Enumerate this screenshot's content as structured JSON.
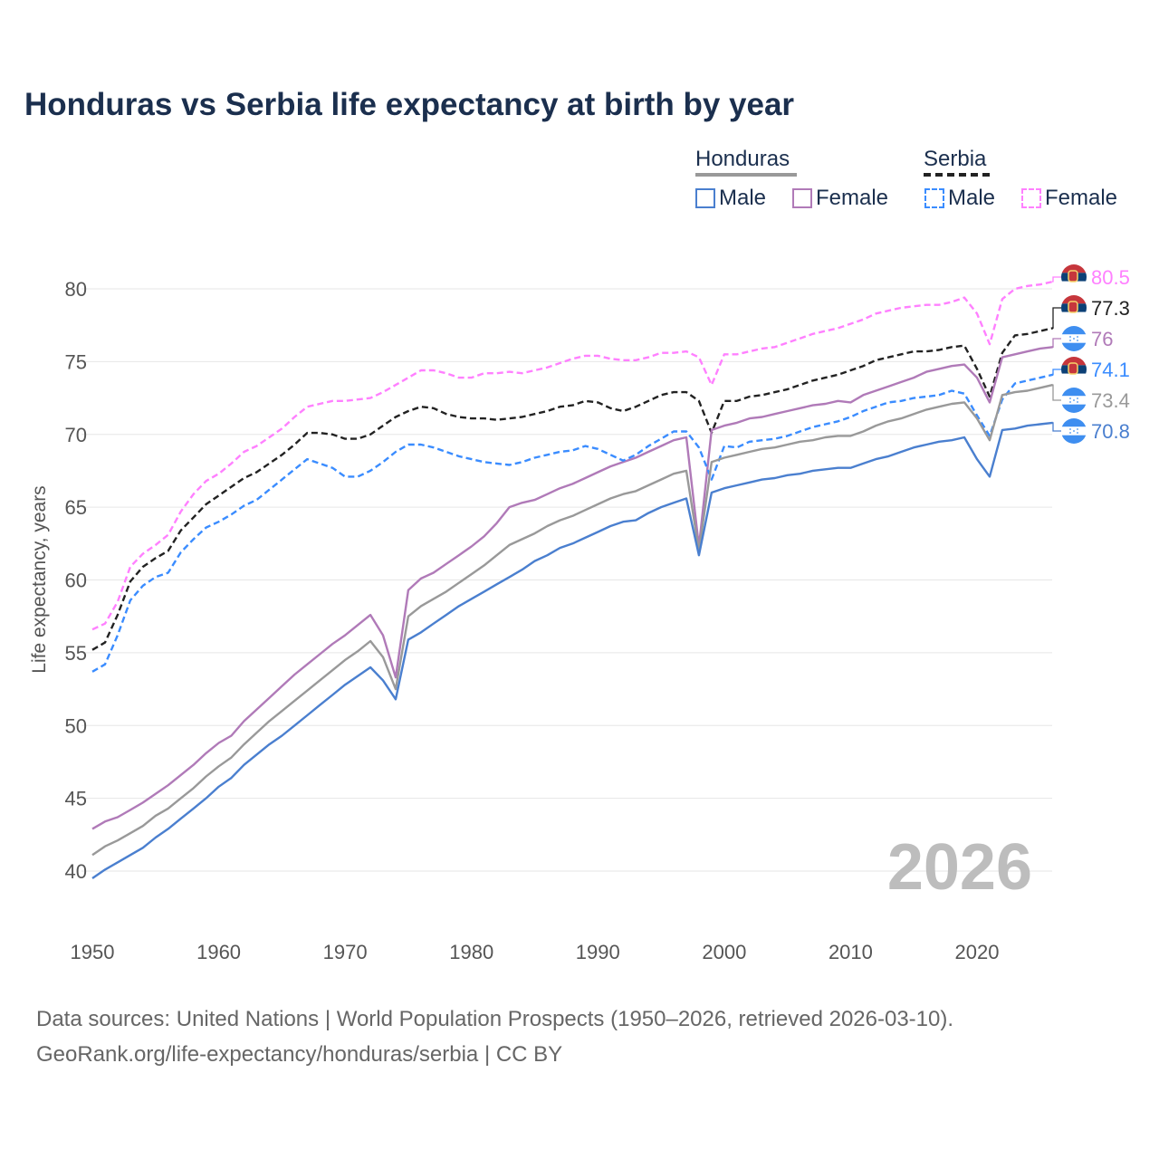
{
  "title": "Honduras vs Serbia life expectancy at birth by year",
  "legend": {
    "groups": [
      {
        "label": "Honduras",
        "color": "#999999",
        "dash": false
      },
      {
        "label": "Serbia",
        "color": "#222222",
        "dash": true
      }
    ],
    "items": [
      {
        "label": "Male",
        "color": "#4a7fcf",
        "dash": false
      },
      {
        "label": "Female",
        "color": "#b07ab8",
        "dash": false
      },
      {
        "label": "Male",
        "color": "#3a8cff",
        "dash": true
      },
      {
        "label": "Female",
        "color": "#ff80ff",
        "dash": true
      }
    ]
  },
  "year_watermark": "2026",
  "source_line1": "Data sources: United Nations | World Population Prospects (1950–2026, retrieved 2026-03-10).",
  "source_line2": "GeoRank.org/life-expectancy/honduras/serbia | CC BY",
  "chart_data": {
    "type": "line",
    "title": "Honduras vs Serbia life expectancy at birth by year",
    "xlabel": "",
    "ylabel": "Life expectancy, years",
    "xlim": [
      1950,
      2026
    ],
    "ylim": [
      37,
      82
    ],
    "xticks": [
      1950,
      1960,
      1970,
      1980,
      1990,
      2000,
      2010,
      2020
    ],
    "yticks": [
      40,
      45,
      50,
      55,
      60,
      65,
      70,
      75,
      80
    ],
    "grid": true,
    "legend_position": "top-right",
    "x_start": 1950,
    "series": [
      {
        "name": "Serbia Female",
        "country": "Serbia",
        "color": "#ff80ff",
        "dash": true,
        "end_label": "80.5",
        "flag": "serbia",
        "values": [
          56.6,
          57.0,
          58.5,
          60.9,
          61.8,
          62.4,
          63.1,
          64.7,
          65.9,
          66.8,
          67.3,
          68.0,
          68.8,
          69.2,
          69.8,
          70.4,
          71.2,
          71.9,
          72.1,
          72.3,
          72.3,
          72.4,
          72.5,
          72.9,
          73.4,
          73.9,
          74.4,
          74.4,
          74.2,
          73.9,
          73.9,
          74.2,
          74.2,
          74.3,
          74.2,
          74.4,
          74.6,
          74.9,
          75.2,
          75.4,
          75.4,
          75.2,
          75.1,
          75.1,
          75.3,
          75.6,
          75.6,
          75.7,
          75.3,
          73.4,
          75.5,
          75.5,
          75.7,
          75.9,
          76.0,
          76.3,
          76.6,
          76.9,
          77.1,
          77.3,
          77.6,
          77.9,
          78.3,
          78.5,
          78.7,
          78.8,
          78.9,
          78.9,
          79.1,
          79.4,
          78.3,
          76.2,
          79.3,
          80.0,
          80.2,
          80.3,
          80.5
        ]
      },
      {
        "name": "Serbia",
        "country": "Serbia",
        "color": "#222222",
        "dash": true,
        "end_label": "77.3",
        "flag": "serbia",
        "values": [
          55.2,
          55.7,
          57.6,
          59.9,
          60.9,
          61.5,
          62.0,
          63.4,
          64.3,
          65.2,
          65.8,
          66.4,
          67.0,
          67.4,
          68.0,
          68.6,
          69.3,
          70.1,
          70.1,
          70.0,
          69.7,
          69.7,
          70.0,
          70.6,
          71.2,
          71.6,
          71.9,
          71.8,
          71.4,
          71.2,
          71.1,
          71.1,
          71.0,
          71.1,
          71.2,
          71.4,
          71.6,
          71.9,
          72.0,
          72.3,
          72.2,
          71.8,
          71.6,
          71.9,
          72.3,
          72.7,
          72.9,
          72.9,
          72.3,
          70.1,
          72.3,
          72.3,
          72.6,
          72.7,
          72.9,
          73.1,
          73.4,
          73.7,
          73.9,
          74.1,
          74.4,
          74.7,
          75.1,
          75.3,
          75.5,
          75.7,
          75.7,
          75.8,
          76.0,
          76.1,
          74.5,
          72.6,
          75.6,
          76.8,
          76.9,
          77.1,
          77.3
        ]
      },
      {
        "name": "Honduras Female",
        "country": "Honduras",
        "color": "#b07ab8",
        "dash": false,
        "end_label": "76",
        "flag": "honduras",
        "values": [
          42.9,
          43.4,
          43.7,
          44.2,
          44.7,
          45.3,
          45.9,
          46.6,
          47.3,
          48.1,
          48.8,
          49.3,
          50.3,
          51.1,
          51.9,
          52.7,
          53.5,
          54.2,
          54.9,
          55.6,
          56.2,
          56.9,
          57.6,
          56.2,
          53.3,
          59.3,
          60.1,
          60.5,
          61.1,
          61.7,
          62.3,
          63.0,
          63.9,
          65.0,
          65.3,
          65.5,
          65.9,
          66.3,
          66.6,
          67.0,
          67.4,
          67.8,
          68.1,
          68.4,
          68.8,
          69.2,
          69.6,
          69.8,
          62.3,
          70.3,
          70.6,
          70.8,
          71.1,
          71.2,
          71.4,
          71.6,
          71.8,
          72.0,
          72.1,
          72.3,
          72.2,
          72.7,
          73.0,
          73.3,
          73.6,
          73.9,
          74.3,
          74.5,
          74.7,
          74.8,
          73.9,
          72.2,
          75.3,
          75.5,
          75.7,
          75.9,
          76.0
        ]
      },
      {
        "name": "Serbia Male",
        "country": "Serbia",
        "color": "#3a8cff",
        "dash": true,
        "end_label": "74.1",
        "flag": "serbia",
        "values": [
          53.7,
          54.2,
          56.2,
          58.6,
          59.6,
          60.2,
          60.5,
          61.9,
          62.8,
          63.6,
          64.0,
          64.5,
          65.1,
          65.5,
          66.2,
          66.9,
          67.6,
          68.3,
          68.0,
          67.7,
          67.1,
          67.1,
          67.5,
          68.1,
          68.8,
          69.3,
          69.3,
          69.1,
          68.8,
          68.5,
          68.3,
          68.1,
          68.0,
          67.9,
          68.1,
          68.4,
          68.6,
          68.8,
          68.9,
          69.2,
          69.0,
          68.6,
          68.2,
          68.6,
          69.2,
          69.7,
          70.2,
          70.2,
          69.1,
          66.9,
          69.2,
          69.1,
          69.5,
          69.6,
          69.7,
          69.9,
          70.2,
          70.5,
          70.7,
          70.9,
          71.2,
          71.6,
          71.9,
          72.2,
          72.3,
          72.5,
          72.6,
          72.7,
          73.0,
          72.8,
          71.3,
          69.9,
          72.4,
          73.5,
          73.7,
          73.9,
          74.1
        ]
      },
      {
        "name": "Honduras",
        "country": "Honduras",
        "color": "#999999",
        "dash": false,
        "end_label": "73.4",
        "flag": "honduras",
        "values": [
          41.1,
          41.7,
          42.1,
          42.6,
          43.1,
          43.8,
          44.3,
          45.0,
          45.7,
          46.5,
          47.2,
          47.8,
          48.7,
          49.5,
          50.3,
          51.0,
          51.7,
          52.4,
          53.1,
          53.8,
          54.5,
          55.1,
          55.8,
          54.7,
          52.5,
          57.5,
          58.2,
          58.7,
          59.2,
          59.8,
          60.4,
          61.0,
          61.7,
          62.4,
          62.8,
          63.2,
          63.7,
          64.1,
          64.4,
          64.8,
          65.2,
          65.6,
          65.9,
          66.1,
          66.5,
          66.9,
          67.3,
          67.5,
          62.0,
          68.1,
          68.4,
          68.6,
          68.8,
          69.0,
          69.1,
          69.3,
          69.5,
          69.6,
          69.8,
          69.9,
          69.9,
          70.2,
          70.6,
          70.9,
          71.1,
          71.4,
          71.7,
          71.9,
          72.1,
          72.2,
          71.1,
          69.6,
          72.7,
          72.9,
          73.0,
          73.2,
          73.4
        ]
      },
      {
        "name": "Honduras Male",
        "country": "Honduras",
        "color": "#4a7fcf",
        "dash": false,
        "end_label": "70.8",
        "flag": "honduras",
        "values": [
          39.5,
          40.1,
          40.6,
          41.1,
          41.6,
          42.3,
          42.9,
          43.6,
          44.3,
          45.0,
          45.8,
          46.4,
          47.3,
          48.0,
          48.7,
          49.3,
          50.0,
          50.7,
          51.4,
          52.1,
          52.8,
          53.4,
          54.0,
          53.1,
          51.8,
          55.9,
          56.4,
          57.0,
          57.6,
          58.2,
          58.7,
          59.2,
          59.7,
          60.2,
          60.7,
          61.3,
          61.7,
          62.2,
          62.5,
          62.9,
          63.3,
          63.7,
          64.0,
          64.1,
          64.6,
          65.0,
          65.3,
          65.6,
          61.7,
          66.0,
          66.3,
          66.5,
          66.7,
          66.9,
          67.0,
          67.2,
          67.3,
          67.5,
          67.6,
          67.7,
          67.7,
          68.0,
          68.3,
          68.5,
          68.8,
          69.1,
          69.3,
          69.5,
          69.6,
          69.8,
          68.3,
          67.1,
          70.3,
          70.4,
          70.6,
          70.7,
          70.8
        ]
      }
    ]
  }
}
